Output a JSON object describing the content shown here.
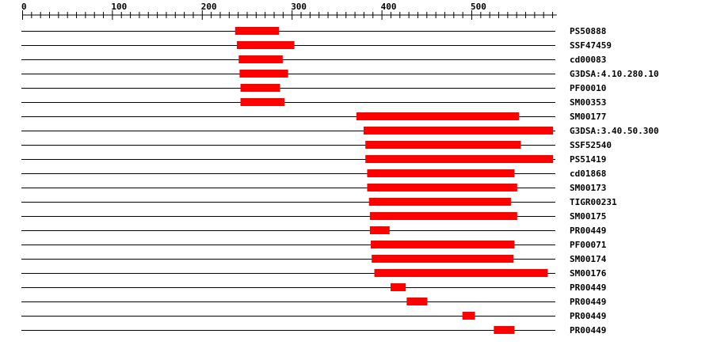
{
  "axis": {
    "min": 0,
    "max": 595,
    "major_step": 100,
    "minor_step": 10,
    "tick_labels": [
      "0",
      "100",
      "200",
      "300",
      "400",
      "500"
    ]
  },
  "colors": {
    "domain": "#ff0000",
    "line": "#000000"
  },
  "tracks": [
    {
      "label": "PS50888",
      "start": 237,
      "end": 286
    },
    {
      "label": "SSF47459",
      "start": 239,
      "end": 303
    },
    {
      "label": "cd00083",
      "start": 241,
      "end": 290
    },
    {
      "label": "G3DSA:4.10.280.10",
      "start": 242,
      "end": 296
    },
    {
      "label": "PF00010",
      "start": 243,
      "end": 287
    },
    {
      "label": "SM00353",
      "start": 243,
      "end": 292
    },
    {
      "label": "SM00177",
      "start": 372,
      "end": 553
    },
    {
      "label": "G3DSA:3.40.50.300",
      "start": 380,
      "end": 591
    },
    {
      "label": "SSF52540",
      "start": 382,
      "end": 555
    },
    {
      "label": "PS51419",
      "start": 382,
      "end": 591
    },
    {
      "label": "cd01868",
      "start": 384,
      "end": 548
    },
    {
      "label": "SM00173",
      "start": 384,
      "end": 551
    },
    {
      "label": "TIGR00231",
      "start": 386,
      "end": 544
    },
    {
      "label": "SM00175",
      "start": 387,
      "end": 551
    },
    {
      "label": "PR00449",
      "start": 387,
      "end": 409
    },
    {
      "label": "PF00071",
      "start": 388,
      "end": 548
    },
    {
      "label": "SM00174",
      "start": 389,
      "end": 547
    },
    {
      "label": "SM00176",
      "start": 392,
      "end": 585
    },
    {
      "label": "PR00449",
      "start": 410,
      "end": 427
    },
    {
      "label": "PR00449",
      "start": 428,
      "end": 451
    },
    {
      "label": "PR00449",
      "start": 490,
      "end": 504
    },
    {
      "label": "PR00449",
      "start": 525,
      "end": 548
    }
  ]
}
